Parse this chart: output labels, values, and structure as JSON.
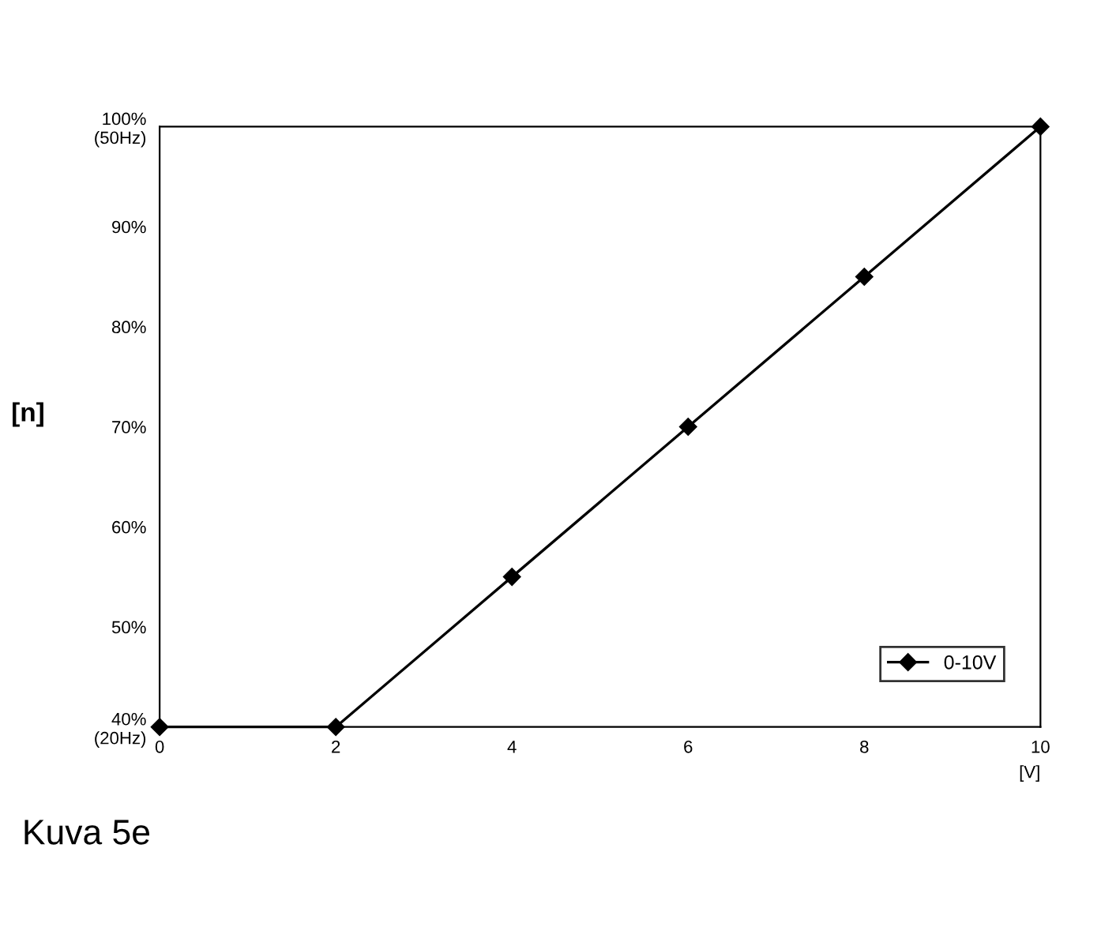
{
  "chart_data": {
    "type": "line",
    "xlabel": "[V]",
    "ylabel": "[n]",
    "x": [
      0,
      2,
      4,
      6,
      8,
      10
    ],
    "series": [
      {
        "name": "0-10V",
        "color": "#000000",
        "values": [
          40,
          40,
          55,
          70,
          85,
          100
        ]
      }
    ],
    "xlim": [
      0,
      10
    ],
    "xticks": [
      0,
      2,
      4,
      6,
      8,
      10
    ],
    "ylim": [
      40,
      100
    ],
    "yticks": [
      {
        "value": 40,
        "label": "40%\n(20Hz)"
      },
      {
        "value": 50,
        "label": "50%"
      },
      {
        "value": 60,
        "label": "60%"
      },
      {
        "value": 70,
        "label": "70%"
      },
      {
        "value": 80,
        "label": "80%"
      },
      {
        "value": 90,
        "label": "90%"
      },
      {
        "value": 100,
        "label": "100%\n(50Hz)"
      }
    ],
    "marker": "diamond",
    "line_style": "solid",
    "grid": false,
    "legend": "bottom right",
    "annotations": [
      "Kuva 5e"
    ]
  }
}
